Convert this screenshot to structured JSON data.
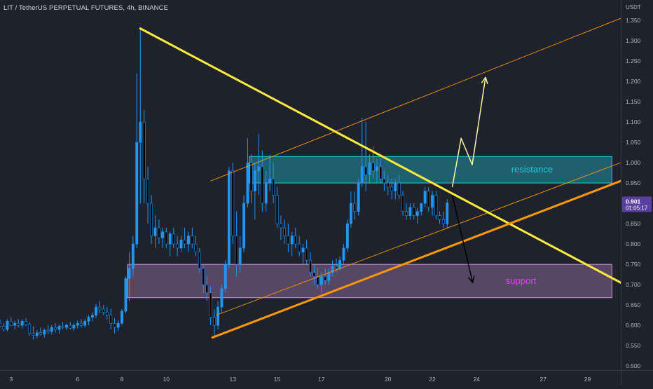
{
  "header": {
    "title": "LIT / TetherUS PERPETUAL FUTURES, 4h, BINANCE",
    "currency": "USDT"
  },
  "price_tag": {
    "price": "0.901",
    "countdown": "01:05:17"
  },
  "zones": {
    "resistance": {
      "label": "resistance",
      "low": 0.95,
      "high": 1.015
    },
    "support": {
      "label": "support",
      "low": 0.668,
      "high": 0.75
    }
  },
  "colors": {
    "background": "#1e222d",
    "bull_candle": "#2196f3",
    "bear_candle": "#000000",
    "trendline": "#ffeb3b",
    "channel": "#ff9800",
    "resistance_zone": "#26c6da",
    "support_zone": "#ce93d8",
    "price_tag": "#5b3f9e"
  },
  "chart_data": {
    "type": "candlestick",
    "title": "LIT / TetherUS PERPETUAL FUTURES, 4h, BINANCE",
    "y_axis": {
      "unit": "USDT",
      "range": [
        0.49,
        1.4
      ],
      "ticks": [
        "0.500",
        "0.550",
        "0.600",
        "0.650",
        "0.700",
        "0.750",
        "0.800",
        "0.850",
        "0.900",
        "0.950",
        "1.000",
        "1.050",
        "1.100",
        "1.150",
        "1.200",
        "1.250",
        "1.300",
        "1.350"
      ]
    },
    "x_axis": {
      "range": [
        2.5,
        30.5
      ],
      "ticks": [
        {
          "label": "3",
          "day": 3
        },
        {
          "label": "6",
          "day": 6
        },
        {
          "label": "8",
          "day": 8
        },
        {
          "label": "10",
          "day": 10
        },
        {
          "label": "13",
          "day": 13
        },
        {
          "label": "15",
          "day": 15
        },
        {
          "label": "17",
          "day": 17
        },
        {
          "label": "20",
          "day": 20
        },
        {
          "label": "22",
          "day": 22
        },
        {
          "label": "24",
          "day": 24
        },
        {
          "label": "27",
          "day": 27
        },
        {
          "label": "29",
          "day": 29
        }
      ]
    },
    "candles": [
      [
        2.5,
        0.605,
        0.615,
        0.595,
        0.598
      ],
      [
        2.67,
        0.598,
        0.605,
        0.585,
        0.59
      ],
      [
        2.83,
        0.59,
        0.615,
        0.585,
        0.61
      ],
      [
        3.0,
        0.61,
        0.62,
        0.598,
        0.6
      ],
      [
        3.17,
        0.6,
        0.612,
        0.59,
        0.605
      ],
      [
        3.33,
        0.605,
        0.615,
        0.595,
        0.6
      ],
      [
        3.5,
        0.6,
        0.615,
        0.592,
        0.61
      ],
      [
        3.67,
        0.61,
        0.618,
        0.598,
        0.602
      ],
      [
        3.83,
        0.602,
        0.608,
        0.575,
        0.58
      ],
      [
        4.0,
        0.58,
        0.598,
        0.565,
        0.575
      ],
      [
        4.17,
        0.575,
        0.588,
        0.568,
        0.582
      ],
      [
        4.33,
        0.582,
        0.595,
        0.575,
        0.578
      ],
      [
        4.5,
        0.578,
        0.592,
        0.57,
        0.588
      ],
      [
        4.67,
        0.588,
        0.6,
        0.578,
        0.585
      ],
      [
        4.83,
        0.585,
        0.6,
        0.578,
        0.595
      ],
      [
        5.0,
        0.595,
        0.605,
        0.582,
        0.59
      ],
      [
        5.17,
        0.59,
        0.602,
        0.58,
        0.598
      ],
      [
        5.33,
        0.598,
        0.608,
        0.59,
        0.595
      ],
      [
        5.5,
        0.595,
        0.605,
        0.588,
        0.6
      ],
      [
        5.67,
        0.6,
        0.608,
        0.59,
        0.593
      ],
      [
        5.83,
        0.593,
        0.605,
        0.586,
        0.6
      ],
      [
        6.0,
        0.6,
        0.612,
        0.592,
        0.605
      ],
      [
        6.17,
        0.605,
        0.615,
        0.595,
        0.6
      ],
      [
        6.33,
        0.6,
        0.615,
        0.595,
        0.61
      ],
      [
        6.5,
        0.61,
        0.625,
        0.6,
        0.62
      ],
      [
        6.67,
        0.62,
        0.632,
        0.61,
        0.625
      ],
      [
        6.83,
        0.625,
        0.652,
        0.618,
        0.645
      ],
      [
        7.0,
        0.645,
        0.66,
        0.63,
        0.64
      ],
      [
        7.17,
        0.64,
        0.65,
        0.625,
        0.632
      ],
      [
        7.33,
        0.632,
        0.645,
        0.615,
        0.625
      ],
      [
        7.5,
        0.625,
        0.64,
        0.59,
        0.605
      ],
      [
        7.67,
        0.605,
        0.618,
        0.58,
        0.595
      ],
      [
        7.83,
        0.595,
        0.612,
        0.585,
        0.605
      ],
      [
        8.0,
        0.605,
        0.64,
        0.6,
        0.635
      ],
      [
        8.17,
        0.635,
        0.72,
        0.63,
        0.715
      ],
      [
        8.33,
        0.715,
        0.78,
        0.66,
        0.74
      ],
      [
        8.5,
        0.74,
        0.82,
        0.72,
        0.8
      ],
      [
        8.67,
        0.8,
        1.22,
        0.79,
        1.05
      ],
      [
        8.83,
        1.05,
        1.33,
        0.9,
        1.1
      ],
      [
        9.0,
        1.1,
        1.13,
        0.9,
        0.96
      ],
      [
        9.17,
        0.96,
        0.99,
        0.85,
        0.9
      ],
      [
        9.33,
        0.9,
        0.92,
        0.8,
        0.82
      ],
      [
        9.5,
        0.82,
        0.87,
        0.79,
        0.84
      ],
      [
        9.67,
        0.84,
        0.86,
        0.8,
        0.815
      ],
      [
        9.83,
        0.815,
        0.84,
        0.79,
        0.83
      ],
      [
        10.0,
        0.83,
        0.84,
        0.79,
        0.8
      ],
      [
        10.17,
        0.8,
        0.83,
        0.77,
        0.825
      ],
      [
        10.33,
        0.825,
        0.84,
        0.79,
        0.8
      ],
      [
        10.5,
        0.8,
        0.82,
        0.77,
        0.79
      ],
      [
        10.67,
        0.79,
        0.82,
        0.78,
        0.81
      ],
      [
        10.83,
        0.81,
        0.84,
        0.79,
        0.8
      ],
      [
        11.0,
        0.8,
        0.83,
        0.78,
        0.82
      ],
      [
        11.17,
        0.82,
        0.84,
        0.79,
        0.8
      ],
      [
        11.33,
        0.8,
        0.82,
        0.77,
        0.78
      ],
      [
        11.5,
        0.78,
        0.79,
        0.73,
        0.74
      ],
      [
        11.67,
        0.74,
        0.75,
        0.68,
        0.7
      ],
      [
        11.83,
        0.7,
        0.72,
        0.66,
        0.68
      ],
      [
        12.0,
        0.68,
        0.695,
        0.6,
        0.62
      ],
      [
        12.17,
        0.62,
        0.64,
        0.575,
        0.6
      ],
      [
        12.33,
        0.6,
        0.66,
        0.59,
        0.645
      ],
      [
        12.5,
        0.645,
        0.7,
        0.63,
        0.69
      ],
      [
        12.67,
        0.69,
        0.76,
        0.68,
        0.75
      ],
      [
        12.83,
        0.75,
        0.99,
        0.74,
        0.98
      ],
      [
        13.0,
        0.98,
        1.0,
        0.8,
        0.82
      ],
      [
        13.17,
        0.82,
        0.88,
        0.72,
        0.75
      ],
      [
        13.33,
        0.75,
        0.82,
        0.73,
        0.79
      ],
      [
        13.5,
        0.79,
        0.92,
        0.78,
        0.9
      ],
      [
        13.67,
        0.9,
        1.06,
        0.89,
        1.0
      ],
      [
        13.83,
        1.0,
        1.02,
        0.9,
        0.93
      ],
      [
        14.0,
        0.93,
        1.0,
        0.86,
        0.98
      ],
      [
        14.17,
        0.98,
        1.07,
        0.92,
        0.99
      ],
      [
        14.33,
        0.99,
        1.03,
        0.88,
        0.9
      ],
      [
        14.5,
        0.9,
        0.98,
        0.88,
        0.95
      ],
      [
        14.67,
        0.95,
        1.02,
        0.93,
        0.96
      ],
      [
        14.83,
        0.96,
        1.0,
        0.9,
        0.92
      ],
      [
        15.0,
        0.92,
        0.94,
        0.84,
        0.85
      ],
      [
        15.17,
        0.85,
        0.87,
        0.81,
        0.84
      ],
      [
        15.33,
        0.84,
        0.86,
        0.8,
        0.82
      ],
      [
        15.5,
        0.82,
        0.85,
        0.78,
        0.8
      ],
      [
        15.67,
        0.8,
        0.83,
        0.77,
        0.82
      ],
      [
        15.83,
        0.82,
        0.84,
        0.79,
        0.8
      ],
      [
        16.0,
        0.8,
        0.82,
        0.77,
        0.78
      ],
      [
        16.17,
        0.78,
        0.8,
        0.75,
        0.79
      ],
      [
        16.33,
        0.79,
        0.81,
        0.75,
        0.76
      ],
      [
        16.5,
        0.76,
        0.78,
        0.72,
        0.73
      ],
      [
        16.67,
        0.73,
        0.75,
        0.7,
        0.72
      ],
      [
        16.83,
        0.72,
        0.74,
        0.69,
        0.7
      ],
      [
        17.0,
        0.7,
        0.73,
        0.68,
        0.72
      ],
      [
        17.17,
        0.72,
        0.74,
        0.7,
        0.71
      ],
      [
        17.33,
        0.71,
        0.74,
        0.7,
        0.73
      ],
      [
        17.5,
        0.73,
        0.76,
        0.72,
        0.745
      ],
      [
        17.67,
        0.745,
        0.765,
        0.73,
        0.74
      ],
      [
        17.83,
        0.74,
        0.77,
        0.735,
        0.76
      ],
      [
        18.0,
        0.76,
        0.8,
        0.75,
        0.79
      ],
      [
        18.17,
        0.79,
        0.86,
        0.78,
        0.85
      ],
      [
        18.33,
        0.85,
        0.93,
        0.84,
        0.9
      ],
      [
        18.5,
        0.9,
        0.93,
        0.86,
        0.88
      ],
      [
        18.67,
        0.88,
        0.96,
        0.87,
        0.95
      ],
      [
        18.83,
        0.95,
        1.11,
        0.94,
        0.99
      ],
      [
        19.0,
        0.99,
        1.1,
        0.93,
        0.97
      ],
      [
        19.17,
        0.97,
        1.02,
        0.95,
        1.0
      ],
      [
        19.33,
        1.0,
        1.04,
        0.96,
        0.98
      ],
      [
        19.5,
        0.98,
        1.01,
        0.95,
        0.99
      ],
      [
        19.67,
        0.99,
        1.01,
        0.95,
        0.96
      ],
      [
        19.83,
        0.96,
        0.98,
        0.93,
        0.95
      ],
      [
        20.0,
        0.95,
        0.97,
        0.92,
        0.94
      ],
      [
        20.17,
        0.94,
        0.96,
        0.91,
        0.93
      ],
      [
        20.33,
        0.93,
        0.96,
        0.91,
        0.95
      ],
      [
        20.5,
        0.95,
        0.97,
        0.91,
        0.92
      ],
      [
        20.67,
        0.92,
        0.93,
        0.87,
        0.88
      ],
      [
        20.83,
        0.88,
        0.9,
        0.86,
        0.87
      ],
      [
        21.0,
        0.87,
        0.9,
        0.86,
        0.89
      ],
      [
        21.17,
        0.89,
        0.9,
        0.86,
        0.87
      ],
      [
        21.33,
        0.87,
        0.89,
        0.85,
        0.88
      ],
      [
        21.5,
        0.88,
        0.9,
        0.87,
        0.9
      ],
      [
        21.67,
        0.9,
        0.94,
        0.89,
        0.93
      ],
      [
        21.83,
        0.93,
        0.94,
        0.88,
        0.89
      ],
      [
        22.0,
        0.89,
        0.93,
        0.87,
        0.92
      ],
      [
        22.17,
        0.92,
        0.93,
        0.86,
        0.87
      ],
      [
        22.33,
        0.87,
        0.88,
        0.85,
        0.86
      ],
      [
        22.5,
        0.86,
        0.88,
        0.84,
        0.85
      ],
      [
        22.67,
        0.85,
        0.91,
        0.84,
        0.901
      ]
    ]
  },
  "drawings": {
    "trendlines": [
      {
        "name": "descending-resistance",
        "color": "#ffeb3b",
        "width": 3,
        "from": [
          8.83,
          1.33
        ],
        "to": [
          30.5,
          0.705
        ]
      },
      {
        "name": "ascending-support",
        "color": "#ff9800",
        "width": 3,
        "from": [
          12.08,
          0.57
        ],
        "to": [
          30.5,
          0.955
        ]
      }
    ],
    "channel_lines": [
      {
        "name": "channel-upper",
        "color": "#ff9800",
        "width": 1,
        "from": [
          12.0,
          0.955
        ],
        "to": [
          30.5,
          1.355
        ]
      },
      {
        "name": "channel-lower",
        "color": "#ff9800",
        "width": 1,
        "from": [
          12.25,
          0.625
        ],
        "to": [
          30.5,
          1.0
        ]
      }
    ],
    "arrows": [
      {
        "name": "bullish-path-arrow",
        "color": "#fff59d",
        "points": [
          [
            22.9,
            0.94
          ],
          [
            23.3,
            1.06
          ],
          [
            23.8,
            0.995
          ],
          [
            24.4,
            1.21
          ]
        ]
      },
      {
        "name": "bearish-path-arrow",
        "color": "#000000",
        "points": [
          [
            22.9,
            0.92
          ],
          [
            23.82,
            0.705
          ]
        ]
      }
    ]
  }
}
